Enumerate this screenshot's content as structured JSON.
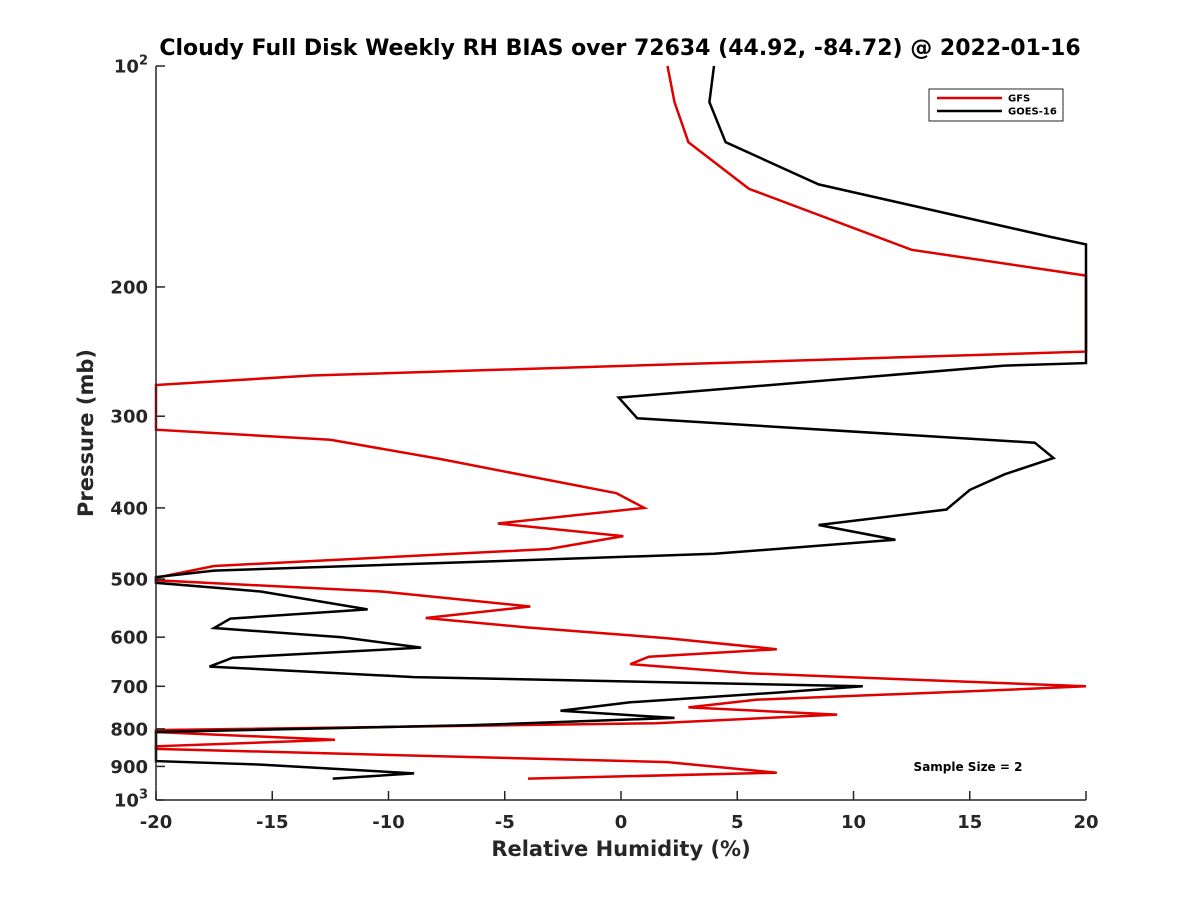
{
  "chart_data": {
    "type": "line",
    "title": "Cloudy Full Disk Weekly RH BIAS over 72634 (44.92, -84.72) @ 2022-01-16",
    "xlabel": "Relative Humidity (%)",
    "ylabel": "Pressure (mb)",
    "xlim": [
      -20,
      20
    ],
    "ylim": [
      100,
      1000
    ],
    "y_scale": "log",
    "y_reversed": true,
    "grid": false,
    "legend_position": "top-right",
    "x_ticks": [
      "-20",
      "-15",
      "-10",
      "-5",
      "0",
      "5",
      "10",
      "15",
      "20"
    ],
    "y_ticks": [
      {
        "value": 100,
        "base": "10",
        "exp": "2"
      },
      {
        "value": 200,
        "label": "200"
      },
      {
        "value": 300,
        "label": "300"
      },
      {
        "value": 400,
        "label": "400"
      },
      {
        "value": 500,
        "label": "500"
      },
      {
        "value": 600,
        "label": "600"
      },
      {
        "value": 700,
        "label": "700"
      },
      {
        "value": 800,
        "label": "800"
      },
      {
        "value": 900,
        "label": "900"
      },
      {
        "value": 1000,
        "base": "10",
        "exp": "3"
      }
    ],
    "annotation": "Sample Size = 2",
    "series": [
      {
        "name": "GFS",
        "color": "#e00000",
        "points": [
          [
            2,
            100
          ],
          [
            2.3,
            112
          ],
          [
            2.9,
            127
          ],
          [
            5.5,
            147
          ],
          [
            12.5,
            178
          ],
          [
            20,
            193
          ],
          [
            20,
            245
          ],
          [
            -13.3,
            264
          ],
          [
            -20,
            272
          ],
          [
            -20,
            313
          ],
          [
            -12.5,
            323
          ],
          [
            -7.8,
            343
          ],
          [
            -0.2,
            382
          ],
          [
            1,
            400
          ],
          [
            -5.3,
            420
          ],
          [
            0.1,
            437
          ],
          [
            -3.1,
            455
          ],
          [
            -17.5,
            480
          ],
          [
            -20,
            498
          ],
          [
            -20,
            502
          ],
          [
            -10.3,
            520
          ],
          [
            -3.9,
            545
          ],
          [
            -8.4,
            565
          ],
          [
            -4,
            582
          ],
          [
            2,
            602
          ],
          [
            6.7,
            623
          ],
          [
            1.2,
            638
          ],
          [
            0.4,
            653
          ],
          [
            5.5,
            672
          ],
          [
            20,
            700
          ],
          [
            16.5,
            708
          ],
          [
            5.8,
            730
          ],
          [
            2.9,
            748
          ],
          [
            9.3,
            765
          ],
          [
            1.5,
            786
          ],
          [
            -20,
            803
          ],
          [
            -20,
            808
          ],
          [
            -12.3,
            828
          ],
          [
            -20,
            845
          ],
          [
            -20,
            852
          ],
          [
            2,
            888
          ],
          [
            6.7,
            918
          ],
          [
            -4,
            935
          ]
        ]
      },
      {
        "name": "GOES-16",
        "color": "#000000",
        "points": [
          [
            4,
            100
          ],
          [
            3.8,
            112
          ],
          [
            4.5,
            127
          ],
          [
            8.5,
            145
          ],
          [
            18.5,
            171
          ],
          [
            20,
            175
          ],
          [
            20,
            254
          ],
          [
            16.5,
            256
          ],
          [
            -0.1,
            283
          ],
          [
            0.7,
            302
          ],
          [
            17.8,
            326
          ],
          [
            18.6,
            342
          ],
          [
            16.5,
            360
          ],
          [
            15,
            378
          ],
          [
            14,
            402
          ],
          [
            8.5,
            422
          ],
          [
            11.8,
            442
          ],
          [
            4,
            462
          ],
          [
            -17.5,
            487
          ],
          [
            -20,
            497
          ],
          [
            -20,
            506
          ],
          [
            -15.5,
            520
          ],
          [
            -10.9,
            550
          ],
          [
            -16.8,
            566
          ],
          [
            -17.5,
            583
          ],
          [
            -12,
            600
          ],
          [
            -8.6,
            620
          ],
          [
            -16.7,
            640
          ],
          [
            -17.7,
            658
          ],
          [
            -8.9,
            680
          ],
          [
            10.4,
            700
          ],
          [
            6.7,
            714
          ],
          [
            0.4,
            736
          ],
          [
            -2.6,
            756
          ],
          [
            2.3,
            773
          ],
          [
            -6.6,
            791
          ],
          [
            -20,
            808
          ],
          [
            -20,
            885
          ],
          [
            -15.5,
            895
          ],
          [
            -8.9,
            920
          ],
          [
            -12.4,
            935
          ]
        ]
      }
    ]
  }
}
